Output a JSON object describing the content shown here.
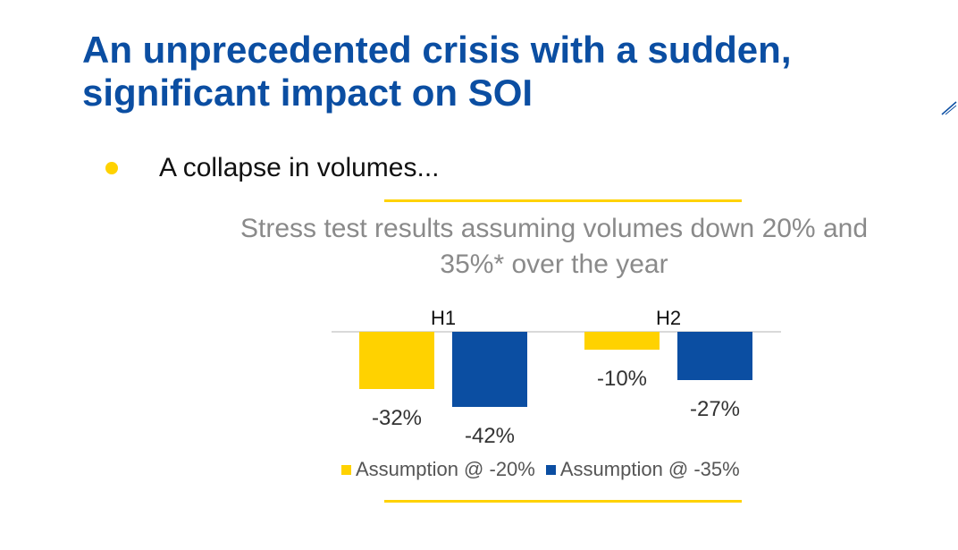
{
  "slide": {
    "title_line1": "An unprecedented crisis with a sudden,",
    "title_line2": "significant impact on SOI",
    "bullet": "A collapse in volumes...",
    "subtitle_line1": "Stress test results assuming volumes down 20% and",
    "subtitle_line2": "35%* over the year"
  },
  "colors": {
    "title": "#0b4ea2",
    "accent_yellow": "#ffd200",
    "series_blue": "#0b4ea2",
    "subtitle": "#8a8a8a"
  },
  "chart_data": {
    "type": "bar",
    "categories": [
      "H1",
      "H2"
    ],
    "series": [
      {
        "name": "Assumption @ -20%",
        "values": [
          -32,
          -10
        ],
        "labels": [
          "-32%",
          "-10%"
        ],
        "color": "#ffd200"
      },
      {
        "name": "Assumption @ -35%",
        "values": [
          -42,
          -27
        ],
        "labels": [
          "-42%",
          "-27%"
        ],
        "color": "#0b4ea2"
      }
    ],
    "ylim": [
      -42,
      0
    ],
    "category_axis_position": "top",
    "legend_position": "bottom",
    "grid": false
  }
}
